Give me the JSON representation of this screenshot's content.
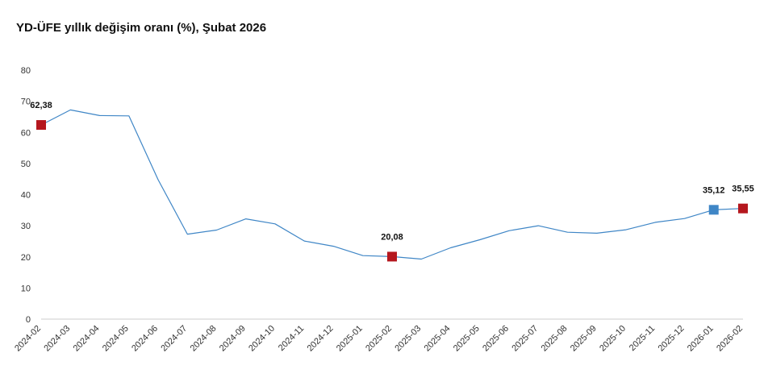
{
  "chart_data": {
    "type": "line",
    "title": "YD-ÜFE yıllık değişim oranı (%), Şubat 2026",
    "xlabel": "",
    "ylabel": "",
    "ylim": [
      0,
      80
    ],
    "yticks": [
      0,
      10,
      20,
      30,
      40,
      50,
      60,
      70,
      80
    ],
    "grid": false,
    "categories": [
      "2024-02",
      "2024-03",
      "2024-04",
      "2024-05",
      "2024-06",
      "2024-07",
      "2024-08",
      "2024-09",
      "2024-10",
      "2024-11",
      "2024-12",
      "2025-01",
      "2025-02",
      "2025-03",
      "2025-04",
      "2025-05",
      "2025-06",
      "2025-07",
      "2025-08",
      "2025-09",
      "2025-10",
      "2025-11",
      "2025-12",
      "2026-01",
      "2026-02"
    ],
    "series": [
      {
        "values": [
          62.38,
          67.2,
          65.4,
          65.3,
          44.8,
          27.3,
          28.6,
          32.2,
          30.6,
          25.1,
          23.4,
          20.4,
          20.08,
          19.3,
          22.9,
          25.5,
          28.4,
          30.0,
          27.9,
          27.6,
          28.7,
          31.1,
          32.3,
          35.12,
          35.55
        ],
        "color": "#3f86c6"
      }
    ],
    "highlighted_points": [
      {
        "category": "2024-02",
        "value": 62.38,
        "label": "62,38",
        "color": "#b5171e"
      },
      {
        "category": "2025-02",
        "value": 20.08,
        "label": "20,08",
        "color": "#b5171e"
      },
      {
        "category": "2026-01",
        "value": 35.12,
        "label": "35,12",
        "color": "#3f86c6"
      },
      {
        "category": "2026-02",
        "value": 35.55,
        "label": "35,55",
        "color": "#b5171e"
      }
    ],
    "axis_color": "#cccccc"
  }
}
